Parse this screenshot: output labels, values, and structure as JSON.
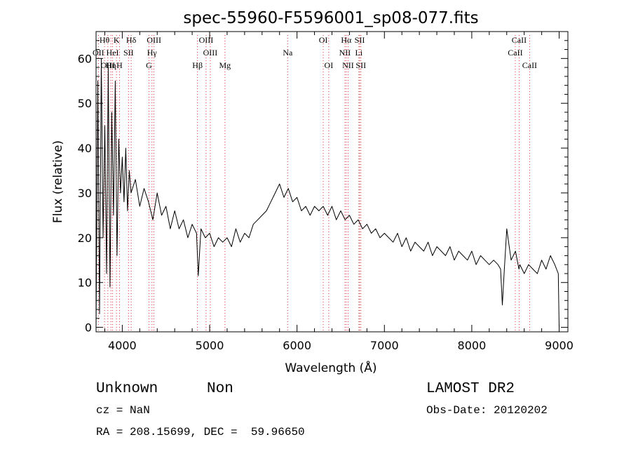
{
  "figure": {
    "title": "spec-55960-F5596001_sp08-077.fits",
    "class_label": "Unknown",
    "subclass_label": "Non",
    "survey_label": "LAMOST DR2",
    "redshift_text": "cz = NaN",
    "obs_date_text": "Obs-Date: 20120202",
    "coords_text": "RA = 208.15699, DEC =  59.96650"
  },
  "chart_data": {
    "type": "line",
    "title": "spec-55960-F5596001_sp08-077.fits",
    "xlabel": "Wavelength (Å)",
    "ylabel": "Flux (relative)",
    "xlim": [
      3700,
      9100
    ],
    "ylim": [
      -1,
      66
    ],
    "x_ticks": [
      4000,
      5000,
      6000,
      7000,
      8000,
      9000
    ],
    "y_ticks": [
      0,
      10,
      20,
      30,
      40,
      50,
      60
    ],
    "grid": false,
    "line_color": "#000000",
    "marker_line_color": "#e03030",
    "spectrum": {
      "x": [
        3700,
        3720,
        3740,
        3760,
        3780,
        3800,
        3820,
        3840,
        3860,
        3880,
        3900,
        3920,
        3940,
        3960,
        3980,
        4000,
        4020,
        4040,
        4060,
        4080,
        4100,
        4150,
        4200,
        4250,
        4300,
        4350,
        4400,
        4450,
        4500,
        4550,
        4600,
        4650,
        4700,
        4750,
        4800,
        4850,
        4870,
        4900,
        4950,
        5000,
        5050,
        5100,
        5150,
        5200,
        5250,
        5300,
        5350,
        5400,
        5450,
        5500,
        5550,
        5600,
        5650,
        5700,
        5750,
        5800,
        5850,
        5900,
        5950,
        6000,
        6050,
        6100,
        6150,
        6200,
        6250,
        6300,
        6350,
        6400,
        6450,
        6500,
        6550,
        6600,
        6650,
        6700,
        6750,
        6800,
        6850,
        6900,
        6950,
        7000,
        7050,
        7100,
        7150,
        7200,
        7250,
        7300,
        7350,
        7400,
        7450,
        7500,
        7550,
        7600,
        7650,
        7700,
        7750,
        7800,
        7850,
        7900,
        7950,
        8000,
        8050,
        8100,
        8150,
        8200,
        8250,
        8300,
        8330,
        8350,
        8370,
        8400,
        8450,
        8500,
        8540,
        8550,
        8600,
        8650,
        8700,
        8750,
        8800,
        8850,
        8900,
        8950,
        8990,
        9000
      ],
      "y": [
        0,
        55,
        3,
        60,
        20,
        45,
        12,
        58,
        9,
        48,
        25,
        55,
        16,
        42,
        30,
        38,
        28,
        40,
        26,
        35,
        30,
        33,
        27,
        31,
        28,
        24,
        30,
        25,
        27,
        22,
        26,
        22,
        24,
        20,
        23,
        21,
        11.5,
        22,
        20,
        21,
        18,
        20,
        19,
        20,
        18,
        22,
        19,
        21,
        20,
        23,
        24,
        25,
        26,
        28,
        30,
        32,
        29,
        31,
        28,
        29,
        26,
        27,
        25,
        27,
        26,
        27,
        25,
        27,
        24,
        26,
        24,
        25,
        23,
        24,
        22,
        23,
        21,
        22,
        20,
        21,
        20,
        19,
        21,
        18,
        20,
        17,
        19,
        18,
        17,
        19,
        16,
        18,
        17,
        16,
        18,
        15,
        17,
        16,
        15,
        17,
        14,
        16,
        15,
        14,
        15,
        14,
        13,
        5,
        12,
        22,
        15,
        17,
        13,
        14,
        12,
        14,
        13,
        12,
        15,
        13,
        16,
        14,
        12,
        0
      ]
    },
    "line_markers": [
      {
        "label": "Hθ",
        "row": 0,
        "x": 3797
      },
      {
        "label": "K",
        "row": 0,
        "x": 3934
      },
      {
        "label": "Hδ",
        "row": 0,
        "x": 4102
      },
      {
        "label": "OIII",
        "row": 0,
        "x": 4363
      },
      {
        "label": "OIII",
        "row": 0,
        "x": 4959
      },
      {
        "label": "OI",
        "row": 0,
        "x": 6300
      },
      {
        "label": "Hα",
        "row": 0,
        "x": 6563
      },
      {
        "label": "SII",
        "row": 0,
        "x": 6717
      },
      {
        "label": "CaII",
        "row": 0,
        "x": 8542
      },
      {
        "label": "OII",
        "row": 1,
        "x": 3727
      },
      {
        "label": "HeI",
        "row": 1,
        "x": 3889
      },
      {
        "label": "SII",
        "row": 1,
        "x": 4072
      },
      {
        "label": "Hγ",
        "row": 1,
        "x": 4340
      },
      {
        "label": "OIII",
        "row": 1,
        "x": 5007
      },
      {
        "label": "Na",
        "row": 1,
        "x": 5893
      },
      {
        "label": "NII",
        "row": 1,
        "x": 6548
      },
      {
        "label": "Li",
        "row": 1,
        "x": 6708
      },
      {
        "label": "CaII",
        "row": 1,
        "x": 8498
      },
      {
        "label": "OIII",
        "row": 2,
        "x": 3835
      },
      {
        "label": "Hη",
        "row": 2,
        "x": 3870
      },
      {
        "label": "H",
        "row": 2,
        "x": 3968
      },
      {
        "label": "G",
        "row": 2,
        "x": 4305
      },
      {
        "label": "Hβ",
        "row": 2,
        "x": 4861
      },
      {
        "label": "Mg",
        "row": 2,
        "x": 5175
      },
      {
        "label": "OI",
        "row": 2,
        "x": 6363
      },
      {
        "label": "NII",
        "row": 2,
        "x": 6584
      },
      {
        "label": "SII",
        "row": 2,
        "x": 6731
      },
      {
        "label": "CaII",
        "row": 2,
        "x": 8662
      }
    ]
  }
}
